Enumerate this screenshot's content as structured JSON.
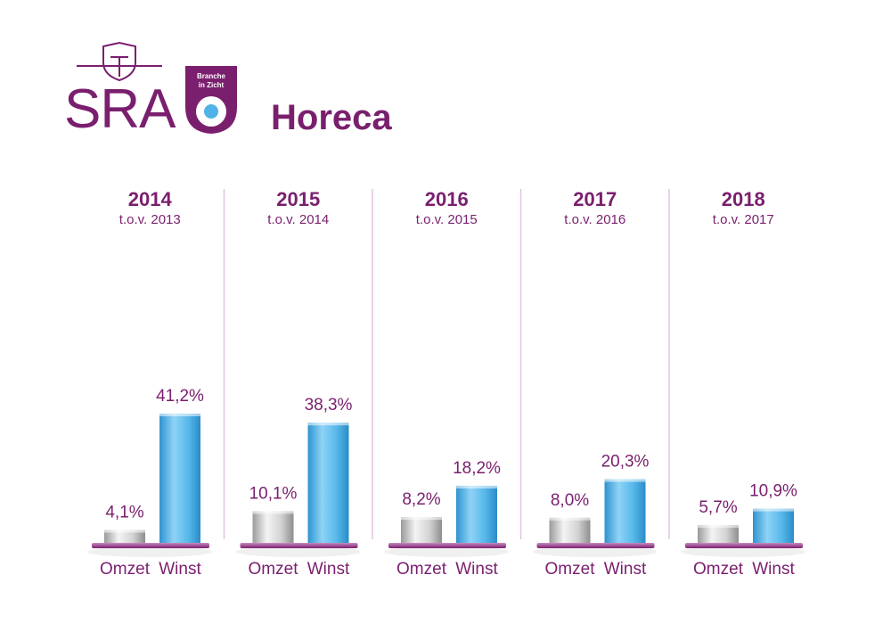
{
  "brand": {
    "logo_text": "SRA",
    "badge_line1": "Branche",
    "badge_line2": "in Zicht",
    "sector": "Horeca",
    "purple": "#7a1f6e",
    "blue": "#4fb3e8"
  },
  "chart_data": {
    "type": "bar",
    "series_names": [
      "Omzet",
      "Winst"
    ],
    "groups": [
      {
        "year": "2014",
        "comparison": "t.o.v. 2013",
        "omzet": 4.1,
        "winst": 41.2,
        "omzet_label": "4,1%",
        "winst_label": "41,2%"
      },
      {
        "year": "2015",
        "comparison": "t.o.v. 2014",
        "omzet": 10.1,
        "winst": 38.3,
        "omzet_label": "10,1%",
        "winst_label": "38,3%"
      },
      {
        "year": "2016",
        "comparison": "t.o.v. 2015",
        "omzet": 8.2,
        "winst": 18.2,
        "omzet_label": "8,2%",
        "winst_label": "18,2%"
      },
      {
        "year": "2017",
        "comparison": "t.o.v. 2016",
        "omzet": 8.0,
        "winst": 20.3,
        "omzet_label": "8,0%",
        "winst_label": "20,3%"
      },
      {
        "year": "2018",
        "comparison": "t.o.v. 2017",
        "omzet": 5.7,
        "winst": 10.9,
        "omzet_label": "5,7%",
        "winst_label": "10,9%"
      }
    ],
    "colors": {
      "omzet": "#c8c8c8",
      "winst": "#4fb3e8",
      "text": "#7a1f6e",
      "divider": "#e3c3de"
    }
  }
}
